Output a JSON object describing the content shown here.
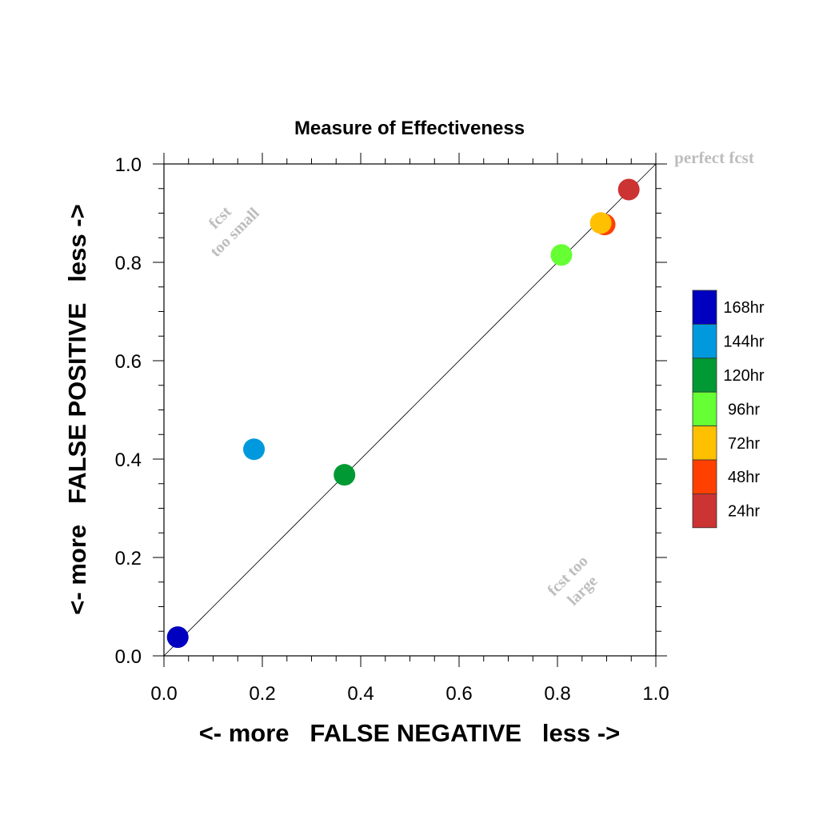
{
  "chart_data": {
    "type": "scatter",
    "title": "Measure of Effectiveness",
    "xlabel": "<- more   FALSE NEGATIVE   less ->",
    "ylabel": "<- more   FALSE POSITIVE   less ->",
    "xlim": [
      0.0,
      1.0
    ],
    "ylim": [
      0.0,
      1.0
    ],
    "x_ticks": [
      "0.0",
      "0.2",
      "0.4",
      "0.6",
      "0.8",
      "1.0"
    ],
    "y_ticks": [
      "0.0",
      "0.2",
      "0.4",
      "0.6",
      "0.8",
      "1.0"
    ],
    "grid": false,
    "legend_position": "right",
    "annotations": {
      "perfect": "perfect fcst",
      "too_small_line1": "fcst",
      "too_small_line2": "too small",
      "too_large_line1": "fcst too",
      "too_large_line2": "large"
    },
    "series": [
      {
        "name": "168hr",
        "color": "#0000C0",
        "x": 0.028,
        "y": 0.038
      },
      {
        "name": "144hr",
        "color": "#0099DD",
        "x": 0.183,
        "y": 0.42
      },
      {
        "name": "120hr",
        "color": "#009933",
        "x": 0.367,
        "y": 0.368
      },
      {
        "name": "96hr",
        "color": "#66FF33",
        "x": 0.808,
        "y": 0.815
      },
      {
        "name": "72hr",
        "color": "#FFC000",
        "x": 0.888,
        "y": 0.88
      },
      {
        "name": "48hr",
        "color": "#FF4000",
        "x": 0.896,
        "y": 0.877
      },
      {
        "name": "24hr",
        "color": "#CC3333",
        "x": 0.945,
        "y": 0.948
      }
    ],
    "legend_order": [
      "168hr",
      "144hr",
      "120hr",
      "96hr",
      "72hr",
      "48hr",
      "24hr"
    ]
  }
}
